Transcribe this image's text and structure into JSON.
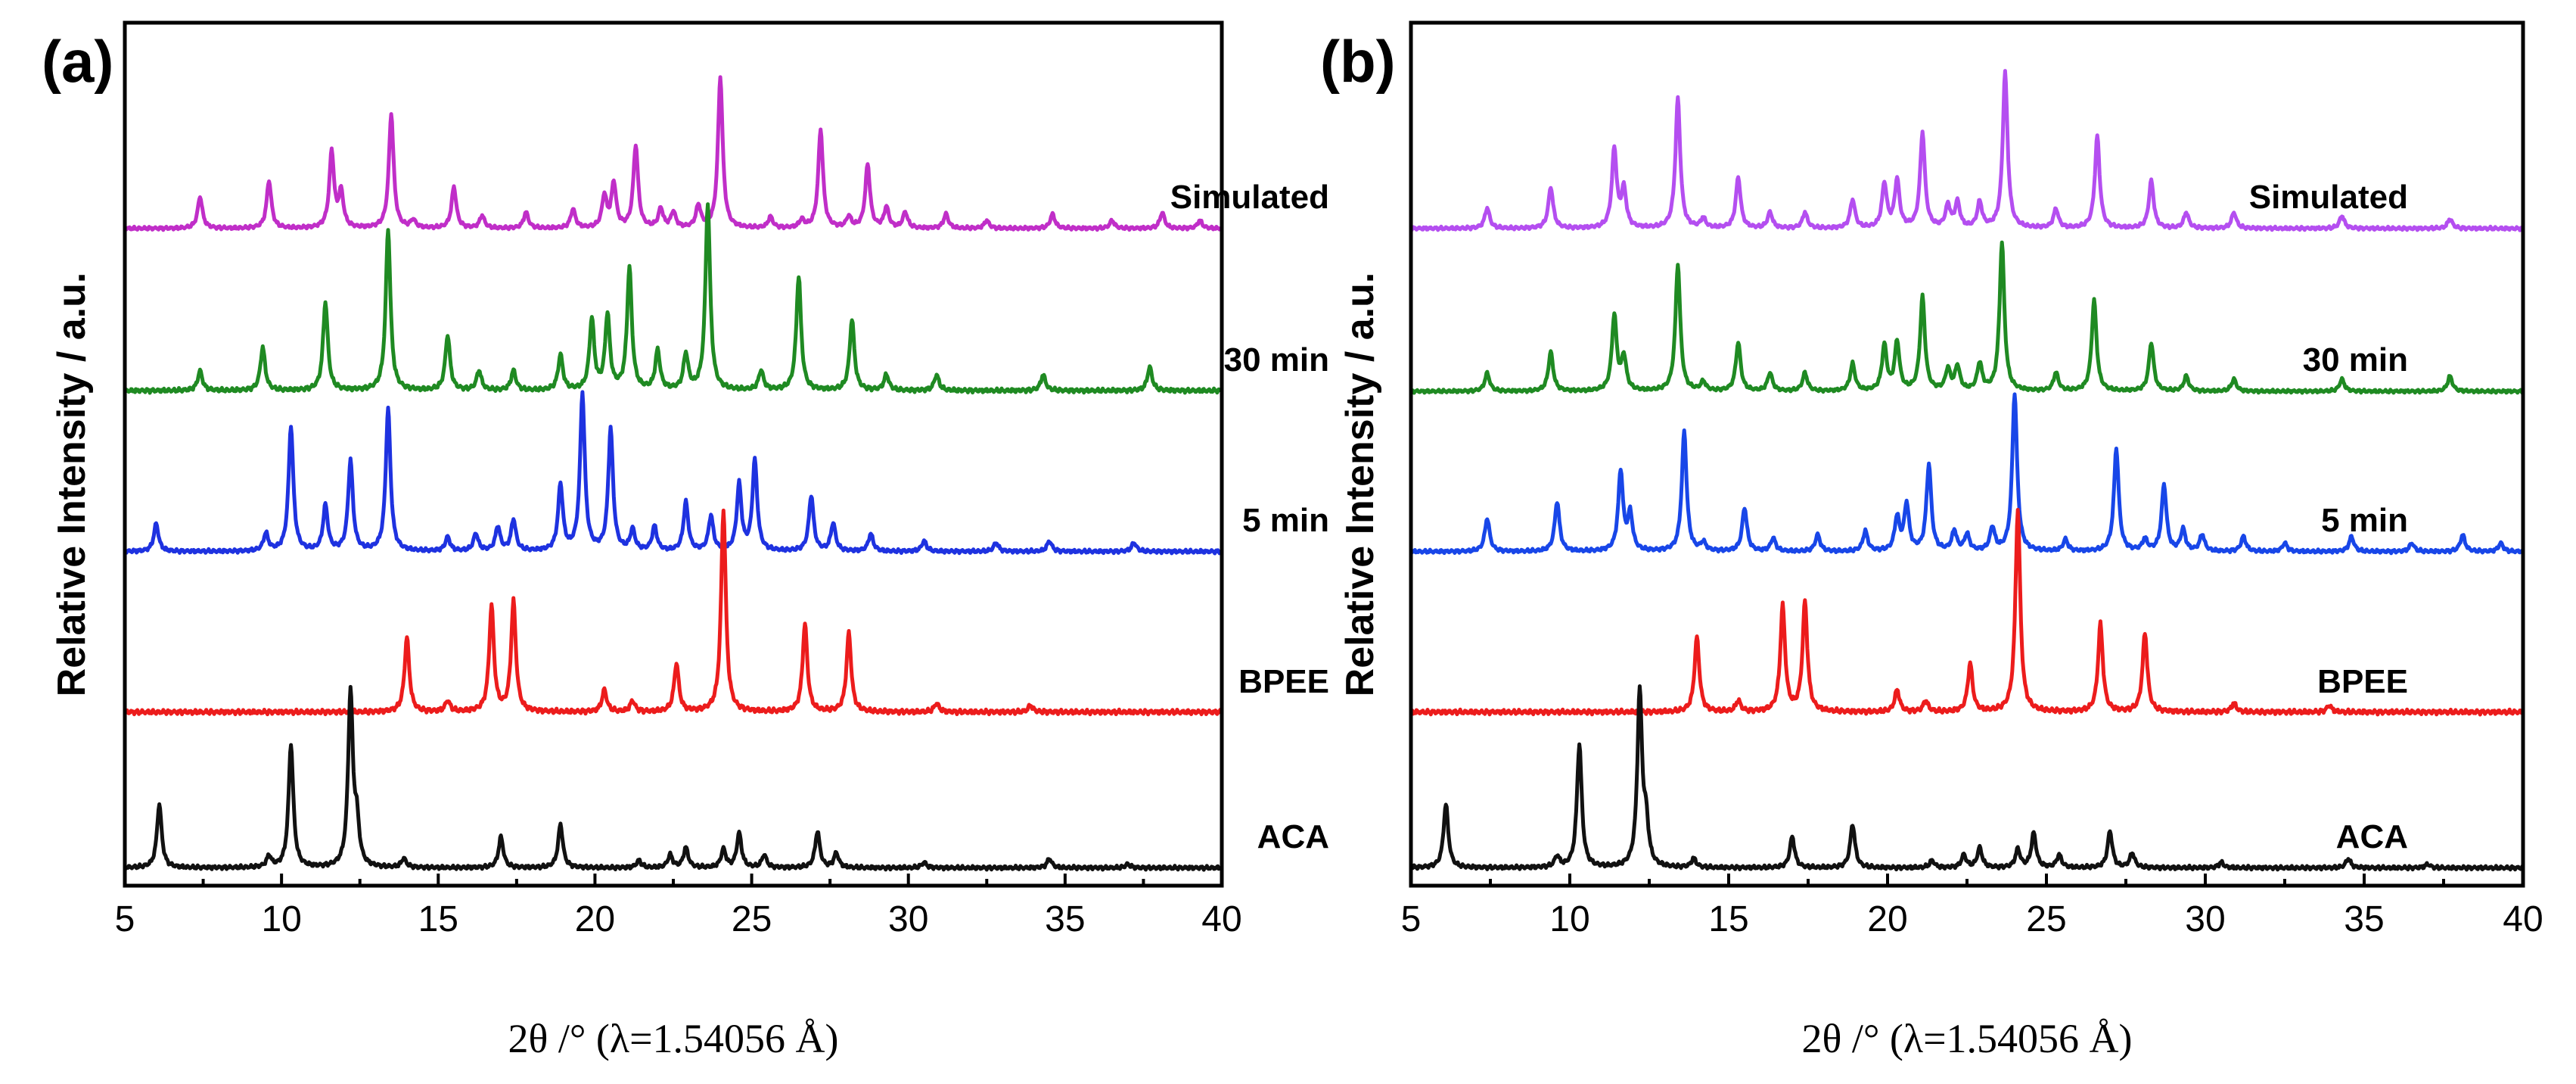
{
  "chart_data": [
    {
      "type": "line",
      "panel_label": "(a)",
      "xlabel": "2θ /° (λ=1.54056 Å)",
      "ylabel": "Relative Intensity / a.u.",
      "xlim": [
        5,
        40
      ],
      "xticks": [
        5,
        10,
        15,
        20,
        25,
        30,
        35,
        40
      ],
      "xtick_labels": [
        "5",
        "10",
        "15",
        "20",
        "25",
        "30",
        "35",
        "40"
      ],
      "grid": false,
      "legend": "inline labels at right of each trace",
      "series": [
        {
          "name": "Simulated",
          "color": "#c02ec8",
          "peaks": [
            [
              7.4,
              0.2
            ],
            [
              9.6,
              0.3
            ],
            [
              11.6,
              0.48
            ],
            [
              11.9,
              0.22
            ],
            [
              13.5,
              0.72
            ],
            [
              14.2,
              0.05
            ],
            [
              15.5,
              0.26
            ],
            [
              16.4,
              0.08
            ],
            [
              17.8,
              0.1
            ],
            [
              19.3,
              0.12
            ],
            [
              20.3,
              0.2
            ],
            [
              20.6,
              0.28
            ],
            [
              21.3,
              0.52
            ],
            [
              22.1,
              0.12
            ],
            [
              22.5,
              0.1
            ],
            [
              23.3,
              0.14
            ],
            [
              24.0,
              0.95
            ],
            [
              25.6,
              0.07
            ],
            [
              26.6,
              0.05
            ],
            [
              27.2,
              0.62
            ],
            [
              28.1,
              0.07
            ],
            [
              28.7,
              0.4
            ],
            [
              29.3,
              0.13
            ],
            [
              29.9,
              0.1
            ],
            [
              31.2,
              0.09
            ],
            [
              32.5,
              0.05
            ],
            [
              34.6,
              0.09
            ],
            [
              36.5,
              0.05
            ],
            [
              38.1,
              0.1
            ],
            [
              39.3,
              0.05
            ]
          ]
        },
        {
          "name": "30 min",
          "color": "#1f8a22",
          "peaks": [
            [
              7.4,
              0.1
            ],
            [
              9.4,
              0.22
            ],
            [
              11.4,
              0.45
            ],
            [
              13.4,
              0.82
            ],
            [
              15.3,
              0.28
            ],
            [
              16.3,
              0.1
            ],
            [
              17.4,
              0.1
            ],
            [
              18.9,
              0.18
            ],
            [
              19.9,
              0.36
            ],
            [
              20.4,
              0.38
            ],
            [
              21.1,
              0.62
            ],
            [
              22.0,
              0.2
            ],
            [
              22.9,
              0.18
            ],
            [
              23.6,
              0.95
            ],
            [
              25.3,
              0.1
            ],
            [
              26.5,
              0.58
            ],
            [
              28.2,
              0.36
            ],
            [
              29.3,
              0.08
            ],
            [
              30.9,
              0.08
            ],
            [
              34.3,
              0.08
            ],
            [
              37.7,
              0.12
            ]
          ]
        },
        {
          "name": "5 min",
          "color": "#1e32e0",
          "peaks": [
            [
              6.0,
              0.16
            ],
            [
              9.5,
              0.1
            ],
            [
              10.3,
              0.72
            ],
            [
              11.4,
              0.26
            ],
            [
              12.2,
              0.52
            ],
            [
              13.4,
              0.82
            ],
            [
              15.3,
              0.08
            ],
            [
              16.2,
              0.1
            ],
            [
              16.9,
              0.14
            ],
            [
              17.4,
              0.18
            ],
            [
              18.9,
              0.38
            ],
            [
              19.6,
              0.9
            ],
            [
              20.5,
              0.7
            ],
            [
              21.2,
              0.12
            ],
            [
              21.9,
              0.14
            ],
            [
              22.9,
              0.28
            ],
            [
              23.7,
              0.2
            ],
            [
              24.6,
              0.38
            ],
            [
              25.1,
              0.52
            ],
            [
              26.9,
              0.32
            ],
            [
              27.6,
              0.16
            ],
            [
              28.8,
              0.1
            ],
            [
              30.5,
              0.06
            ],
            [
              32.8,
              0.05
            ],
            [
              34.5,
              0.06
            ],
            [
              37.2,
              0.05
            ]
          ]
        },
        {
          "name": "BPEE",
          "color": "#ec1c1c",
          "peaks": [
            [
              14.0,
              0.34
            ],
            [
              15.3,
              0.05
            ],
            [
              16.7,
              0.48
            ],
            [
              17.4,
              0.5
            ],
            [
              20.3,
              0.1
            ],
            [
              21.2,
              0.05
            ],
            [
              22.6,
              0.22
            ],
            [
              24.1,
              0.92
            ],
            [
              26.7,
              0.4
            ],
            [
              28.1,
              0.36
            ],
            [
              30.9,
              0.04
            ],
            [
              33.9,
              0.03
            ]
          ]
        },
        {
          "name": "ACA",
          "color": "#111111",
          "peaks": [
            [
              6.1,
              0.35
            ],
            [
              9.6,
              0.06
            ],
            [
              10.3,
              0.68
            ],
            [
              12.2,
              0.96
            ],
            [
              12.4,
              0.22
            ],
            [
              13.9,
              0.05
            ],
            [
              17.0,
              0.17
            ],
            [
              18.9,
              0.24
            ],
            [
              21.4,
              0.04
            ],
            [
              22.4,
              0.07
            ],
            [
              22.9,
              0.11
            ],
            [
              24.1,
              0.1
            ],
            [
              24.6,
              0.19
            ],
            [
              25.4,
              0.07
            ],
            [
              27.1,
              0.2
            ],
            [
              27.7,
              0.08
            ],
            [
              30.5,
              0.03
            ],
            [
              34.5,
              0.05
            ],
            [
              37.0,
              0.02
            ]
          ]
        }
      ]
    },
    {
      "type": "line",
      "panel_label": "(b)",
      "xlabel": "2θ /° (λ=1.54056 Å)",
      "ylabel": "Relative Intensity / a.u.",
      "xlim": [
        5,
        40
      ],
      "xticks": [
        5,
        10,
        15,
        20,
        25,
        30,
        35,
        40
      ],
      "xtick_labels": [
        "5",
        "10",
        "15",
        "20",
        "25",
        "30",
        "35",
        "40"
      ],
      "grid": false,
      "legend": "inline labels at right of each trace",
      "series": [
        {
          "name": "Simulated",
          "color": "#b44ef0",
          "peaks": [
            [
              7.4,
              0.13
            ],
            [
              9.4,
              0.26
            ],
            [
              11.4,
              0.5
            ],
            [
              11.7,
              0.24
            ],
            [
              13.4,
              0.82
            ],
            [
              14.2,
              0.06
            ],
            [
              15.3,
              0.32
            ],
            [
              16.3,
              0.1
            ],
            [
              17.4,
              0.1
            ],
            [
              18.9,
              0.18
            ],
            [
              19.9,
              0.28
            ],
            [
              20.3,
              0.3
            ],
            [
              21.1,
              0.6
            ],
            [
              21.9,
              0.14
            ],
            [
              22.2,
              0.16
            ],
            [
              22.9,
              0.16
            ],
            [
              23.7,
              0.98
            ],
            [
              25.3,
              0.12
            ],
            [
              26.6,
              0.58
            ],
            [
              28.3,
              0.3
            ],
            [
              29.4,
              0.1
            ],
            [
              30.9,
              0.1
            ],
            [
              34.3,
              0.08
            ],
            [
              37.7,
              0.06
            ]
          ]
        },
        {
          "name": "30 min",
          "color": "#1f8a22",
          "peaks": [
            [
              7.4,
              0.12
            ],
            [
              9.4,
              0.26
            ],
            [
              11.4,
              0.5
            ],
            [
              11.7,
              0.22
            ],
            [
              13.4,
              0.84
            ],
            [
              14.2,
              0.06
            ],
            [
              15.3,
              0.32
            ],
            [
              16.3,
              0.12
            ],
            [
              17.4,
              0.12
            ],
            [
              18.9,
              0.18
            ],
            [
              19.9,
              0.3
            ],
            [
              20.3,
              0.32
            ],
            [
              21.1,
              0.62
            ],
            [
              21.9,
              0.14
            ],
            [
              22.2,
              0.16
            ],
            [
              22.9,
              0.18
            ],
            [
              23.6,
              0.98
            ],
            [
              25.3,
              0.12
            ],
            [
              26.5,
              0.6
            ],
            [
              28.3,
              0.32
            ],
            [
              29.4,
              0.1
            ],
            [
              30.9,
              0.08
            ],
            [
              34.3,
              0.08
            ],
            [
              37.7,
              0.1
            ]
          ]
        },
        {
          "name": "5 min",
          "color": "#1846e8",
          "peaks": [
            [
              7.4,
              0.2
            ],
            [
              9.6,
              0.3
            ],
            [
              11.6,
              0.48
            ],
            [
              11.9,
              0.22
            ],
            [
              13.6,
              0.72
            ],
            [
              14.2,
              0.05
            ],
            [
              15.5,
              0.26
            ],
            [
              16.4,
              0.08
            ],
            [
              17.8,
              0.1
            ],
            [
              19.3,
              0.12
            ],
            [
              20.3,
              0.2
            ],
            [
              20.6,
              0.28
            ],
            [
              21.3,
              0.52
            ],
            [
              22.1,
              0.12
            ],
            [
              22.5,
              0.1
            ],
            [
              23.3,
              0.14
            ],
            [
              24.0,
              0.95
            ],
            [
              25.6,
              0.07
            ],
            [
              27.2,
              0.62
            ],
            [
              28.1,
              0.07
            ],
            [
              28.7,
              0.4
            ],
            [
              29.3,
              0.13
            ],
            [
              29.9,
              0.1
            ],
            [
              31.2,
              0.09
            ],
            [
              32.5,
              0.05
            ],
            [
              34.6,
              0.09
            ],
            [
              36.5,
              0.05
            ],
            [
              38.1,
              0.1
            ],
            [
              39.3,
              0.05
            ]
          ]
        },
        {
          "name": "BPEE",
          "color": "#ec1c1c",
          "peaks": [
            [
              14.0,
              0.34
            ],
            [
              15.3,
              0.05
            ],
            [
              16.7,
              0.48
            ],
            [
              17.4,
              0.5
            ],
            [
              20.3,
              0.1
            ],
            [
              21.2,
              0.05
            ],
            [
              22.6,
              0.22
            ],
            [
              24.1,
              0.92
            ],
            [
              26.7,
              0.4
            ],
            [
              28.1,
              0.36
            ],
            [
              30.9,
              0.04
            ],
            [
              33.9,
              0.03
            ]
          ]
        },
        {
          "name": "ACA",
          "color": "#111111",
          "peaks": [
            [
              6.1,
              0.35
            ],
            [
              9.6,
              0.06
            ],
            [
              10.3,
              0.68
            ],
            [
              12.2,
              0.96
            ],
            [
              12.4,
              0.22
            ],
            [
              13.9,
              0.05
            ],
            [
              17.0,
              0.17
            ],
            [
              18.9,
              0.24
            ],
            [
              21.4,
              0.04
            ],
            [
              22.4,
              0.07
            ],
            [
              22.9,
              0.11
            ],
            [
              24.1,
              0.1
            ],
            [
              24.6,
              0.19
            ],
            [
              25.4,
              0.07
            ],
            [
              27.0,
              0.2
            ],
            [
              27.7,
              0.08
            ],
            [
              30.5,
              0.03
            ],
            [
              34.5,
              0.05
            ],
            [
              37.0,
              0.02
            ]
          ]
        }
      ]
    }
  ]
}
